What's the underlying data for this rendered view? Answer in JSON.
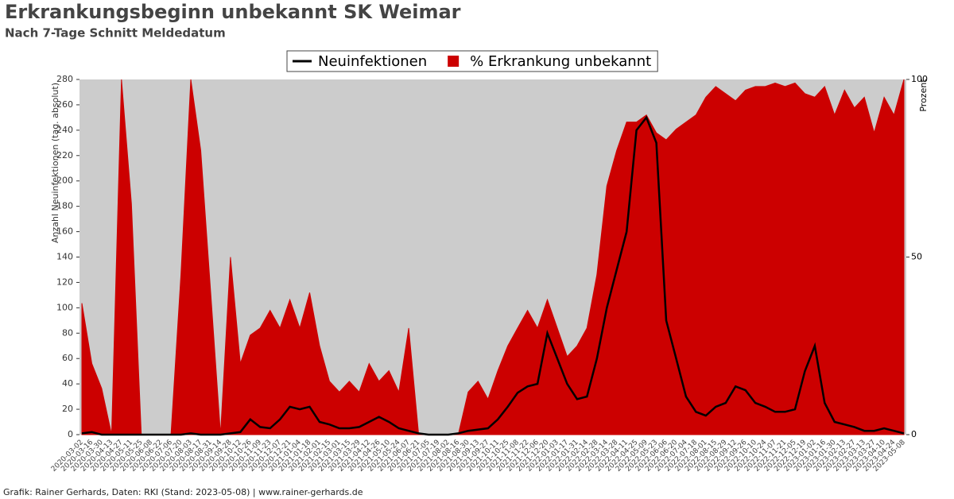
{
  "chart_data": {
    "type": "line-area",
    "title": "Erkrankungsbeginn unbekannt SK Weimar",
    "subtitle": "Nach 7-Tage Schnitt Meldedatum",
    "ylabel": "Anzahl Neuinfektionen (tag. absolut)",
    "y2label": "Prozent",
    "footer": "Grafik: Rainer Gerhards, Daten: RKI (Stand: 2023-05-08) | www.rainer-gerhards.de",
    "categories": [
      "2020-03-02",
      "2020-03-16",
      "2020-03-30",
      "2020-04-13",
      "2020-04-27",
      "2020-05-11",
      "2020-05-25",
      "2020-06-08",
      "2020-06-22",
      "2020-07-06",
      "2020-07-20",
      "2020-08-03",
      "2020-08-17",
      "2020-08-31",
      "2020-09-14",
      "2020-09-28",
      "2020-10-12",
      "2020-10-26",
      "2020-11-09",
      "2020-11-23",
      "2020-12-07",
      "2020-12-21",
      "2021-01-04",
      "2021-01-18",
      "2021-02-01",
      "2021-02-15",
      "2021-03-01",
      "2021-03-15",
      "2021-03-29",
      "2021-04-12",
      "2021-04-26",
      "2021-05-10",
      "2021-05-24",
      "2021-06-07",
      "2021-06-21",
      "2021-07-05",
      "2021-07-19",
      "2021-08-02",
      "2021-08-16",
      "2021-08-30",
      "2021-09-13",
      "2021-09-27",
      "2021-10-11",
      "2021-10-25",
      "2021-11-08",
      "2021-11-22",
      "2021-12-06",
      "2021-12-20",
      "2022-01-03",
      "2022-01-17",
      "2022-01-31",
      "2022-02-14",
      "2022-02-28",
      "2022-03-14",
      "2022-03-28",
      "2022-04-11",
      "2022-04-25",
      "2022-05-09",
      "2022-05-23",
      "2022-06-06",
      "2022-06-20",
      "2022-07-04",
      "2022-07-18",
      "2022-08-01",
      "2022-08-15",
      "2022-08-29",
      "2022-09-12",
      "2022-09-26",
      "2022-10-10",
      "2022-10-24",
      "2022-11-07",
      "2022-11-21",
      "2022-12-05",
      "2022-12-19",
      "2023-01-02",
      "2023-01-16",
      "2023-01-30",
      "2023-02-13",
      "2023-02-27",
      "2023-03-13",
      "2023-03-27",
      "2023-04-10",
      "2023-04-24",
      "2023-05-08"
    ],
    "series": [
      {
        "name": "Neuinfektionen",
        "color": "#000000",
        "axis": "y",
        "values": [
          1,
          2,
          0,
          0,
          0,
          0,
          0,
          0,
          0,
          0,
          0,
          1,
          0,
          0,
          0,
          1,
          2,
          12,
          6,
          5,
          12,
          22,
          20,
          22,
          10,
          8,
          5,
          5,
          6,
          10,
          14,
          10,
          5,
          3,
          1,
          0,
          0,
          0,
          1,
          3,
          4,
          5,
          12,
          22,
          33,
          38,
          40,
          80,
          60,
          40,
          28,
          30,
          60,
          100,
          130,
          160,
          240,
          250,
          230,
          90,
          60,
          30,
          18,
          15,
          22,
          25,
          38,
          35,
          25,
          22,
          18,
          18,
          20,
          50,
          70,
          25,
          10,
          8,
          6,
          3,
          3,
          5,
          3,
          1
        ]
      },
      {
        "name": "% Erkrankung unbekannt",
        "color": "#cc0000",
        "axis": "y2",
        "values": [
          37,
          20,
          13,
          0,
          100,
          65,
          0,
          0,
          0,
          0,
          45,
          100,
          80,
          40,
          0,
          50,
          20,
          28,
          30,
          35,
          30,
          38,
          30,
          40,
          25,
          15,
          12,
          15,
          12,
          20,
          15,
          18,
          12,
          30,
          0,
          0,
          0,
          0,
          0,
          12,
          15,
          10,
          18,
          25,
          30,
          35,
          30,
          38,
          30,
          22,
          25,
          30,
          45,
          70,
          80,
          88,
          88,
          90,
          85,
          83,
          86,
          88,
          90,
          95,
          98,
          96,
          94,
          97,
          98,
          98,
          99,
          98,
          99,
          96,
          95,
          98,
          90,
          97,
          92,
          95,
          85,
          95,
          90,
          100
        ]
      }
    ],
    "ylim": [
      0,
      280
    ],
    "yticks": [
      0,
      20,
      40,
      60,
      80,
      100,
      120,
      140,
      160,
      180,
      200,
      220,
      240,
      260,
      280
    ],
    "y2lim": [
      0,
      100
    ],
    "y2ticks": [
      0,
      50,
      100
    ],
    "legend": "top"
  }
}
